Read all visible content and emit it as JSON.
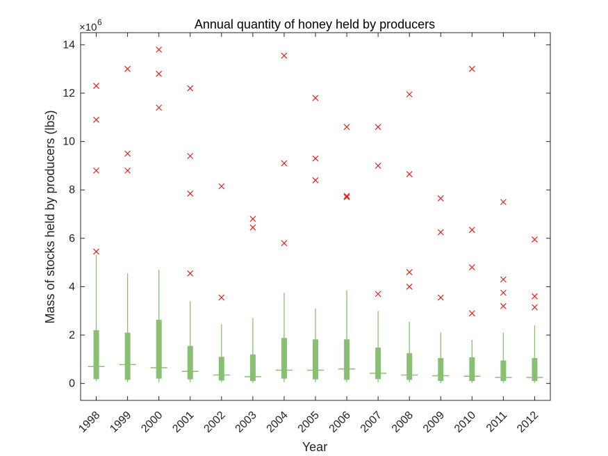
{
  "chart_data": {
    "type": "boxplot",
    "title": "Annual quantity of honey held by producers",
    "xlabel": "Year",
    "ylabel": "Mass of stocks held by producers (lbs)",
    "y_exponent_label": "×10",
    "y_exponent_power": "6",
    "y_scale": 1000000,
    "ylim": [
      -0.7,
      14.5
    ],
    "yticks": [
      0,
      2,
      4,
      6,
      8,
      10,
      12,
      14
    ],
    "categories": [
      "1998",
      "1999",
      "2000",
      "2001",
      "2002",
      "2003",
      "2004",
      "2005",
      "2006",
      "2007",
      "2008",
      "2009",
      "2010",
      "2011",
      "2012"
    ],
    "boxes": [
      {
        "year": "1998",
        "lower_whisker": 0.1,
        "q1": 0.18,
        "median": 0.7,
        "q3": 2.2,
        "upper_whisker": 5.3,
        "outliers": [
          5.45,
          8.8,
          10.9,
          12.3
        ]
      },
      {
        "year": "1999",
        "lower_whisker": 0.05,
        "q1": 0.15,
        "median": 0.78,
        "q3": 2.1,
        "upper_whisker": 4.55,
        "outliers": [
          8.8,
          9.5,
          13.0
        ]
      },
      {
        "year": "2000",
        "lower_whisker": 0.05,
        "q1": 0.2,
        "median": 0.65,
        "q3": 2.63,
        "upper_whisker": 4.7,
        "outliers": [
          11.4,
          12.8,
          13.8
        ]
      },
      {
        "year": "2001",
        "lower_whisker": 0.05,
        "q1": 0.17,
        "median": 0.5,
        "q3": 1.55,
        "upper_whisker": 3.4,
        "outliers": [
          4.55,
          7.85,
          9.4,
          12.2
        ]
      },
      {
        "year": "2002",
        "lower_whisker": 0.05,
        "q1": 0.12,
        "median": 0.35,
        "q3": 1.1,
        "upper_whisker": 2.45,
        "outliers": [
          3.55,
          8.15
        ]
      },
      {
        "year": "2003",
        "lower_whisker": 0.02,
        "q1": 0.1,
        "median": 0.28,
        "q3": 1.2,
        "upper_whisker": 2.7,
        "outliers": [
          6.45,
          6.8
        ]
      },
      {
        "year": "2004",
        "lower_whisker": 0.05,
        "q1": 0.2,
        "median": 0.55,
        "q3": 1.88,
        "upper_whisker": 3.75,
        "outliers": [
          5.8,
          9.1,
          13.55
        ]
      },
      {
        "year": "2005",
        "lower_whisker": 0.05,
        "q1": 0.17,
        "median": 0.55,
        "q3": 1.82,
        "upper_whisker": 3.1,
        "outliers": [
          8.4,
          9.3,
          11.8
        ]
      },
      {
        "year": "2006",
        "lower_whisker": 0.05,
        "q1": 0.15,
        "median": 0.6,
        "q3": 1.82,
        "upper_whisker": 3.85,
        "outliers": [
          7.7,
          7.75,
          10.6
        ]
      },
      {
        "year": "2007",
        "lower_whisker": 0.05,
        "q1": 0.18,
        "median": 0.42,
        "q3": 1.48,
        "upper_whisker": 3.0,
        "outliers": [
          3.7,
          9.0,
          10.6
        ]
      },
      {
        "year": "2008",
        "lower_whisker": 0.05,
        "q1": 0.15,
        "median": 0.35,
        "q3": 1.25,
        "upper_whisker": 2.55,
        "outliers": [
          4.0,
          4.6,
          8.65,
          11.95
        ]
      },
      {
        "year": "2009",
        "lower_whisker": 0.02,
        "q1": 0.1,
        "median": 0.32,
        "q3": 1.05,
        "upper_whisker": 2.1,
        "outliers": [
          3.55,
          6.25,
          7.65
        ]
      },
      {
        "year": "2010",
        "lower_whisker": 0.02,
        "q1": 0.1,
        "median": 0.3,
        "q3": 1.08,
        "upper_whisker": 1.8,
        "outliers": [
          2.9,
          4.8,
          6.35,
          13.0
        ]
      },
      {
        "year": "2011",
        "lower_whisker": 0.02,
        "q1": 0.1,
        "median": 0.25,
        "q3": 0.95,
        "upper_whisker": 2.1,
        "outliers": [
          3.2,
          3.75,
          4.3,
          7.5
        ]
      },
      {
        "year": "2012",
        "lower_whisker": 0.02,
        "q1": 0.1,
        "median": 0.25,
        "q3": 1.05,
        "upper_whisker": 2.4,
        "outliers": [
          3.15,
          3.6,
          5.95
        ]
      }
    ],
    "colors": {
      "box": "#88bf72",
      "outlier": "#e0201b",
      "axis": "#262626"
    },
    "grid": false,
    "legend": "none"
  }
}
